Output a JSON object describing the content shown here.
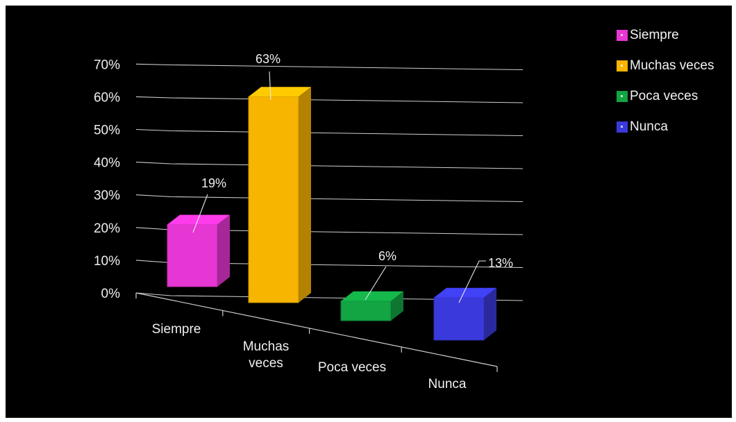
{
  "chart_data": {
    "type": "bar",
    "title": "",
    "xlabel": "",
    "ylabel": "",
    "ylim": [
      0,
      70
    ],
    "y_ticks": [
      "0%",
      "10%",
      "20%",
      "30%",
      "40%",
      "50%",
      "60%",
      "70%"
    ],
    "grid": true,
    "legend_position": "top-right",
    "categories": [
      {
        "axis_label_lines": [
          "Siempre"
        ],
        "legend": "Siempre",
        "value": 19,
        "label": "19%",
        "color": "#e636d3"
      },
      {
        "axis_label_lines": [
          "Muchas",
          "veces"
        ],
        "legend": "Muchas veces",
        "value": 63,
        "label": "63%",
        "color": "#f7b500"
      },
      {
        "axis_label_lines": [
          "Poca veces"
        ],
        "legend": "Poca veces",
        "value": 6,
        "label": "6%",
        "color": "#13a443"
      },
      {
        "axis_label_lines": [
          "Nunca"
        ],
        "legend": "Nunca",
        "value": 13,
        "label": "13%",
        "color": "#3a3adc"
      }
    ]
  }
}
